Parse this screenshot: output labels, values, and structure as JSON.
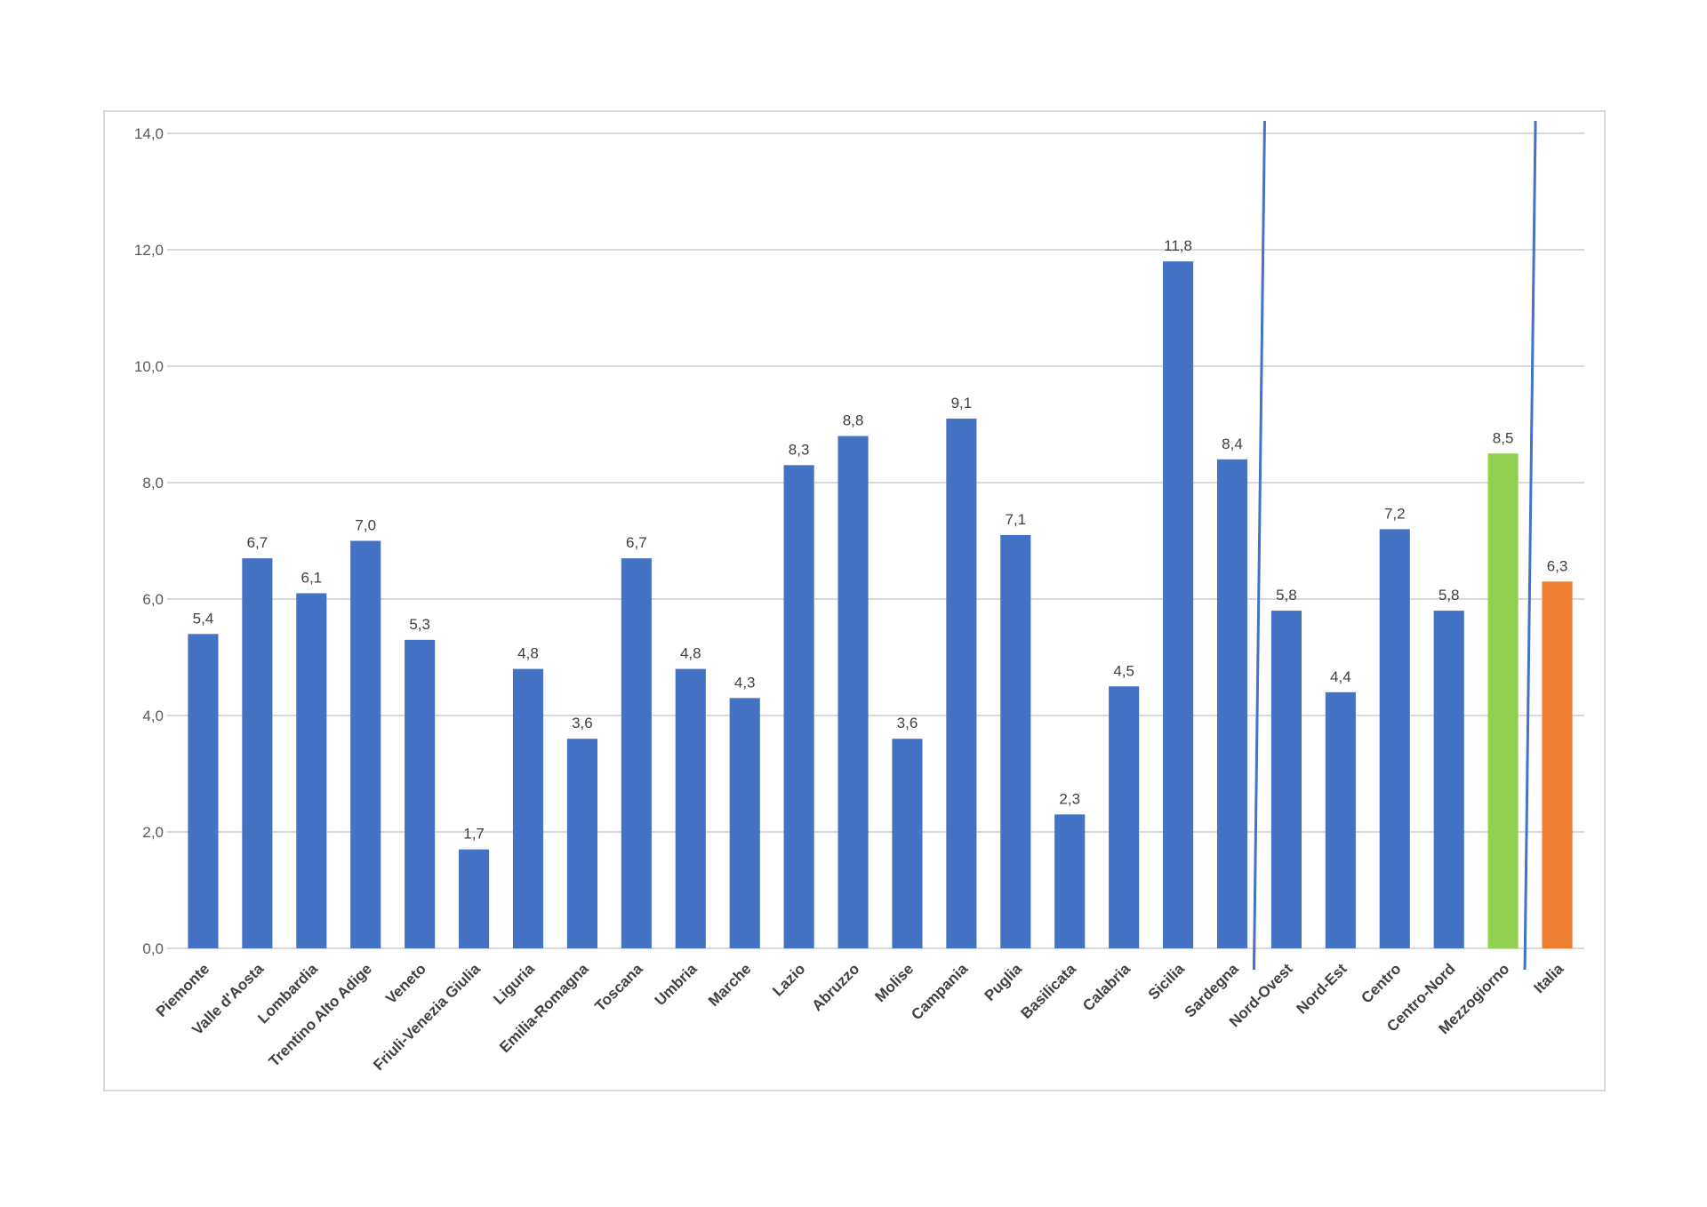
{
  "chart_data": {
    "type": "bar",
    "categories": [
      "Piemonte",
      "Valle d'Aosta",
      "Lombardia",
      "Trentino Alto Adige",
      "Veneto",
      "Friuli-Venezia Giulia",
      "Liguria",
      "Emilia-Romagna",
      "Toscana",
      "Umbria",
      "Marche",
      "Lazio",
      "Abruzzo",
      "Molise",
      "Campania",
      "Puglia",
      "Basilicata",
      "Calabria",
      "Sicilia",
      "Sardegna",
      "Nord-Ovest",
      "Nord-Est",
      "Centro",
      "Centro-Nord",
      "Mezzogiorno",
      "Italia"
    ],
    "values": [
      5.4,
      6.7,
      6.1,
      7.0,
      5.3,
      1.7,
      4.8,
      3.6,
      6.7,
      4.8,
      4.3,
      8.3,
      8.8,
      3.6,
      9.1,
      7.1,
      2.3,
      4.5,
      11.8,
      8.4,
      5.8,
      4.4,
      7.2,
      5.8,
      8.5,
      6.3
    ],
    "data_labels": [
      "5,4",
      "6,7",
      "6,1",
      "7,0",
      "5,3",
      "1,7",
      "4,8",
      "3,6",
      "6,7",
      "4,8",
      "4,3",
      "8,3",
      "8,8",
      "3,6",
      "9,1",
      "7,1",
      "2,3",
      "4,5",
      "11,8",
      "8,4",
      "5,8",
      "4,4",
      "7,2",
      "5,8",
      "8,5",
      "6,3"
    ],
    "bar_colors": [
      "#4472c4",
      "#4472c4",
      "#4472c4",
      "#4472c4",
      "#4472c4",
      "#4472c4",
      "#4472c4",
      "#4472c4",
      "#4472c4",
      "#4472c4",
      "#4472c4",
      "#4472c4",
      "#4472c4",
      "#4472c4",
      "#4472c4",
      "#4472c4",
      "#4472c4",
      "#4472c4",
      "#4472c4",
      "#4472c4",
      "#4472c4",
      "#4472c4",
      "#4472c4",
      "#4472c4",
      "#92d050",
      "#ed7d31"
    ],
    "ylim": [
      0,
      14
    ],
    "yticks": [
      0,
      2,
      4,
      6,
      8,
      10,
      12,
      14
    ],
    "ytick_labels": [
      "0,0",
      "2,0",
      "4,0",
      "6,0",
      "8,0",
      "10,0",
      "12,0",
      "14,0"
    ],
    "separators_after": [
      "Sardegna",
      "Mezzogiorno"
    ],
    "separator_color": "#4472c4",
    "grid": true,
    "legend": "none",
    "title": "",
    "xlabel": "",
    "ylabel": ""
  }
}
